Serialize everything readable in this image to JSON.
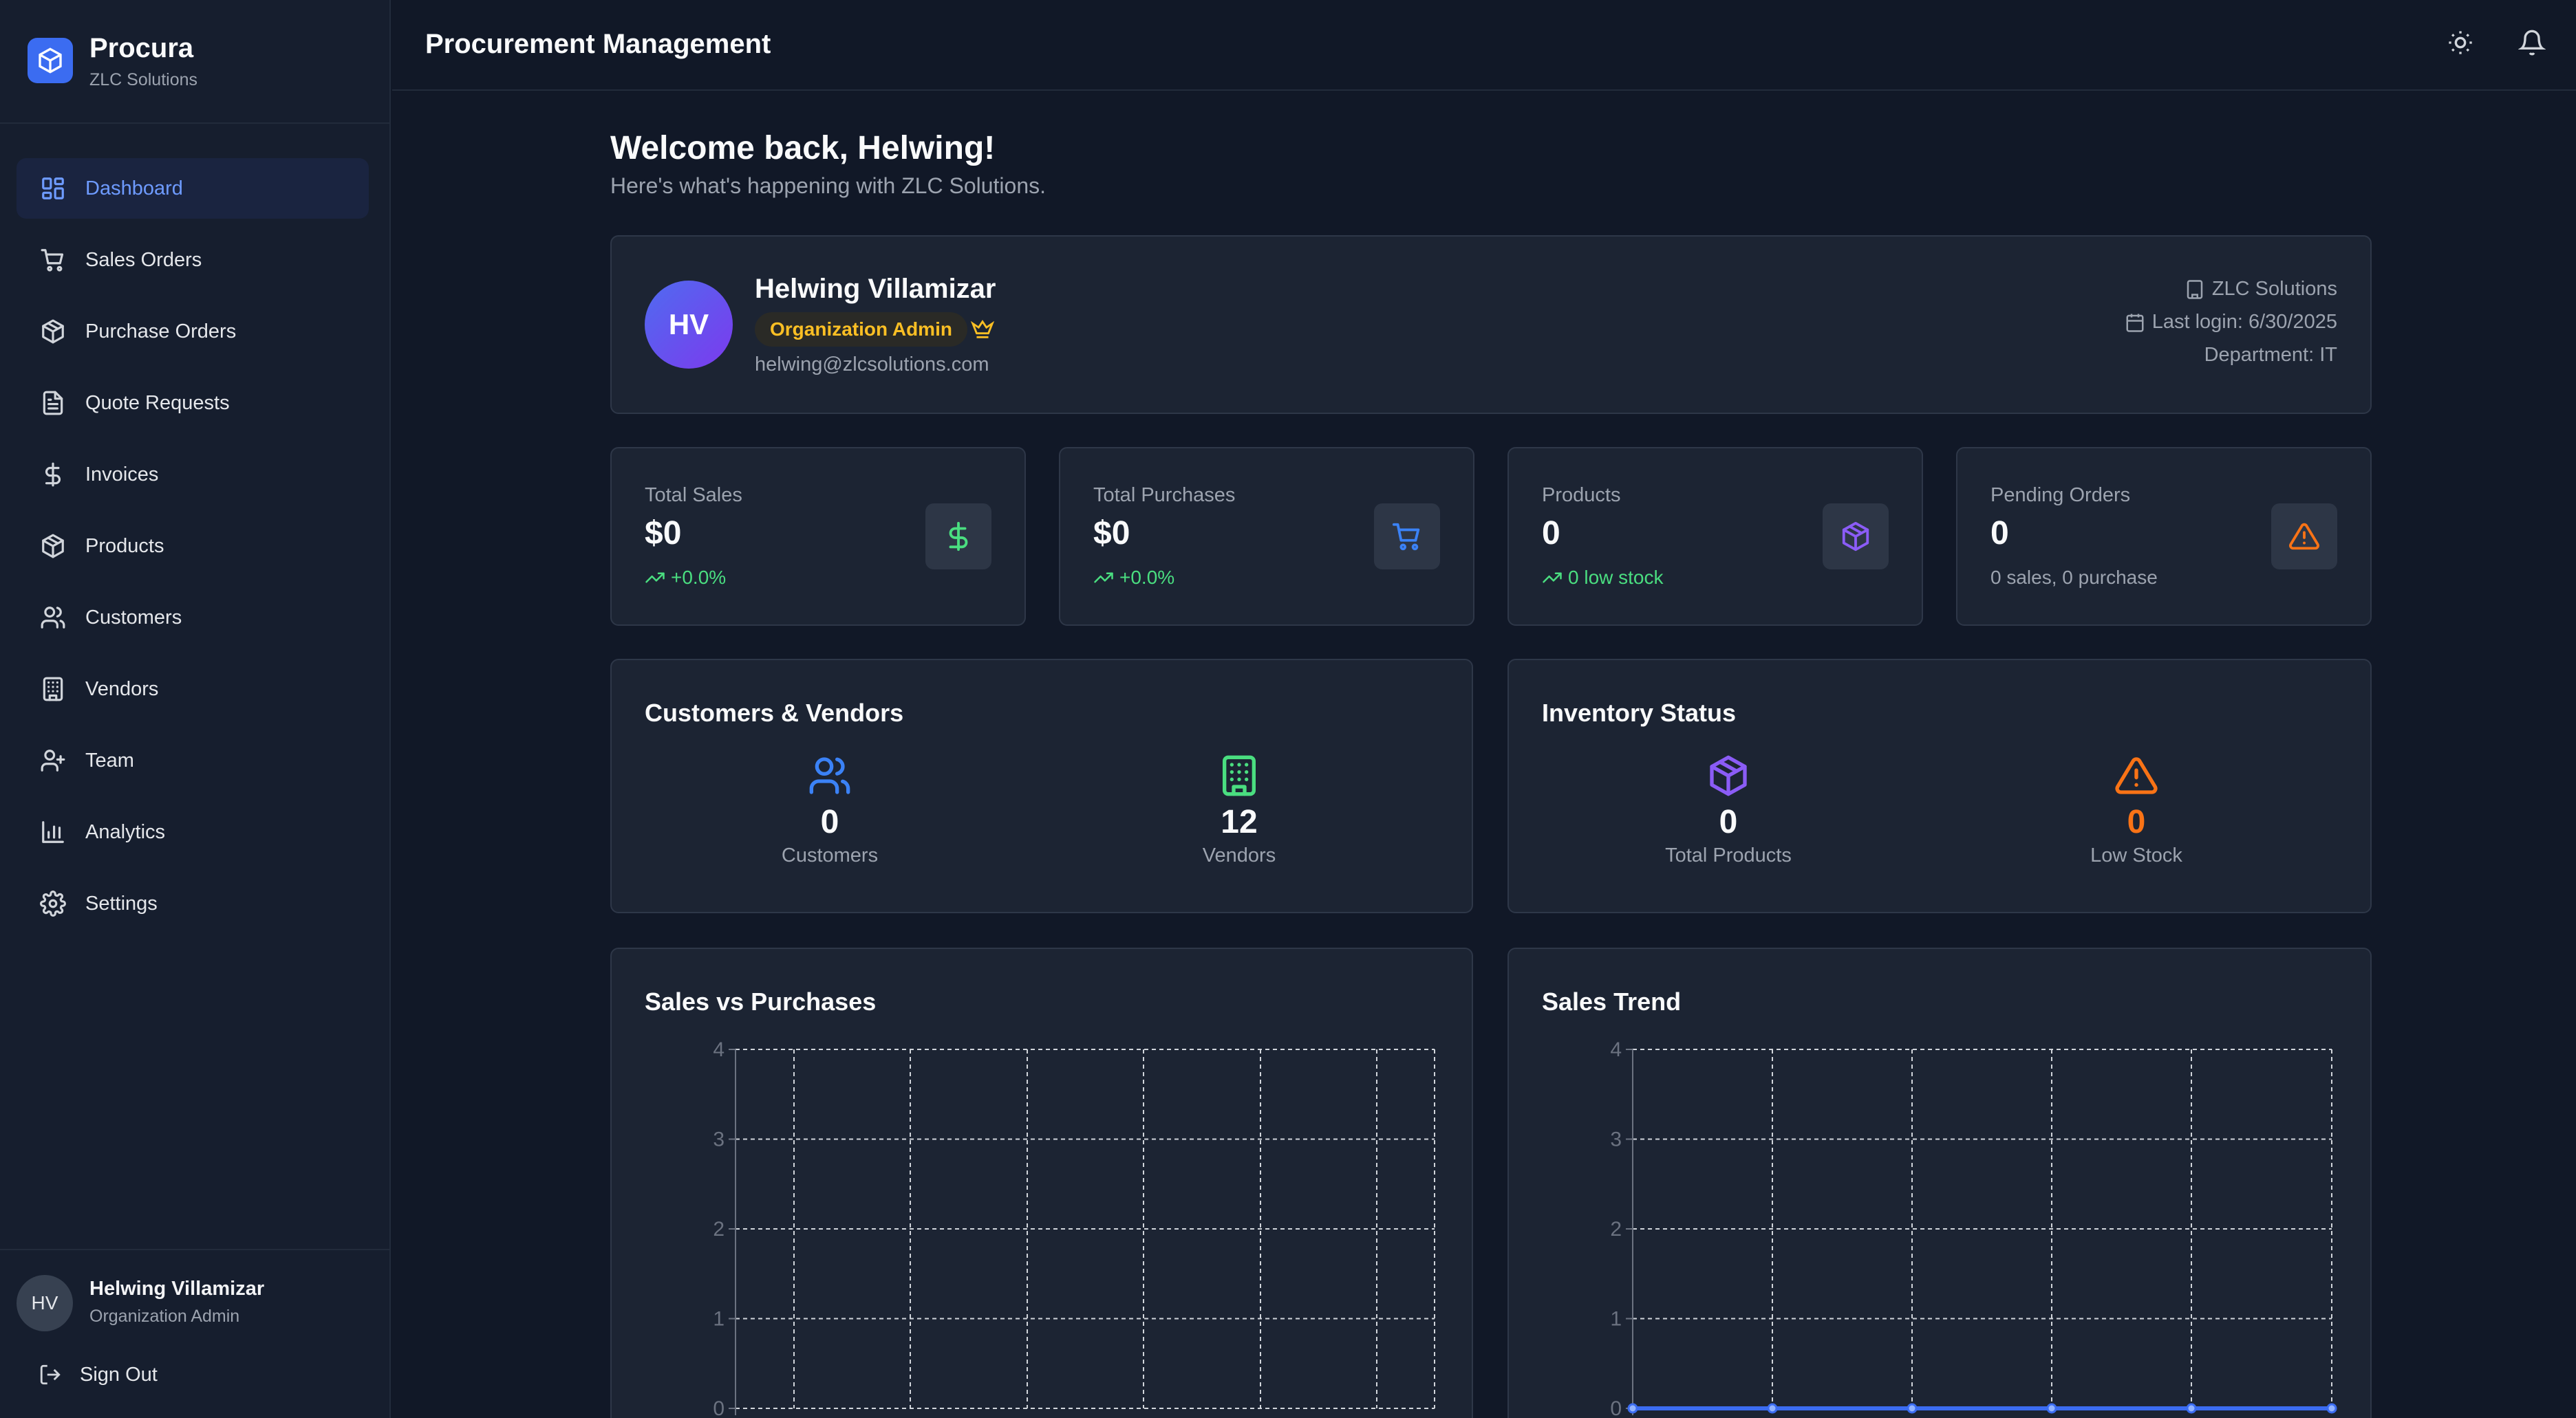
{
  "brand": {
    "name": "Procura",
    "org": "ZLC Solutions"
  },
  "nav": [
    {
      "label": "Dashboard",
      "icon": "dashboard-icon",
      "active": true
    },
    {
      "label": "Sales Orders",
      "icon": "cart-icon"
    },
    {
      "label": "Purchase Orders",
      "icon": "package-icon"
    },
    {
      "label": "Quote Requests",
      "icon": "document-icon"
    },
    {
      "label": "Invoices",
      "icon": "dollar-icon"
    },
    {
      "label": "Products",
      "icon": "package-icon"
    },
    {
      "label": "Customers",
      "icon": "users-icon"
    },
    {
      "label": "Vendors",
      "icon": "building-icon"
    },
    {
      "label": "Team",
      "icon": "user-plus-icon"
    },
    {
      "label": "Analytics",
      "icon": "bar-chart-icon"
    },
    {
      "label": "Settings",
      "icon": "gear-icon"
    }
  ],
  "sidebar_user": {
    "initials": "HV",
    "name": "Helwing Villamizar",
    "role": "Organization Admin",
    "sign_out": "Sign Out"
  },
  "header": {
    "title": "Procurement Management",
    "icons": [
      "sun-icon",
      "bell-icon"
    ]
  },
  "welcome": {
    "title": "Welcome back, Helwing!",
    "subtitle": "Here's what's happening with ZLC Solutions."
  },
  "profile": {
    "initials": "HV",
    "name": "Helwing Villamizar",
    "role": "Organization Admin",
    "email": "helwing@zlcsolutions.com",
    "org": "ZLC Solutions",
    "last_login": "Last login: 6/30/2025",
    "department": "Department: IT"
  },
  "stats": [
    {
      "label": "Total Sales",
      "value": "$0",
      "sub": "+0.0%",
      "icon": "dollar-icon",
      "color": "#4ade80"
    },
    {
      "label": "Total Purchases",
      "value": "$0",
      "sub": "+0.0%",
      "icon": "cart-icon",
      "color": "#3b82f6"
    },
    {
      "label": "Products",
      "value": "0",
      "sub": "0 low stock",
      "icon": "package-icon",
      "color": "#8b5cf6"
    },
    {
      "label": "Pending Orders",
      "value": "0",
      "sub": "0 sales, 0 purchase",
      "icon": "warning-icon",
      "color": "#f97316"
    }
  ],
  "customers_vendors": {
    "title": "Customers & Vendors",
    "items": [
      {
        "value": "0",
        "label": "Customers",
        "icon": "users-icon",
        "color": "#3b82f6"
      },
      {
        "value": "12",
        "label": "Vendors",
        "icon": "building-icon",
        "color": "#4ade80"
      }
    ]
  },
  "inventory": {
    "title": "Inventory Status",
    "items": [
      {
        "value": "0",
        "label": "Total Products",
        "icon": "package-icon",
        "color": "#8b5cf6"
      },
      {
        "value": "0",
        "label": "Low Stock",
        "icon": "warning-icon",
        "color": "#f97316"
      }
    ]
  },
  "chart_data": [
    {
      "type": "bar",
      "title": "Sales vs Purchases",
      "y_ticks": [
        "0",
        "1",
        "2",
        "3",
        "4"
      ],
      "ylim": [
        0,
        4
      ],
      "grid": true,
      "categories_count": 6,
      "series": []
    },
    {
      "type": "line",
      "title": "Sales Trend",
      "y_ticks": [
        "0",
        "1",
        "2",
        "3",
        "4"
      ],
      "ylim": [
        0,
        4
      ],
      "grid": true,
      "series": [
        {
          "values": [
            0,
            0,
            0,
            0,
            0,
            0
          ],
          "color": "#3b6cf1"
        }
      ]
    }
  ]
}
